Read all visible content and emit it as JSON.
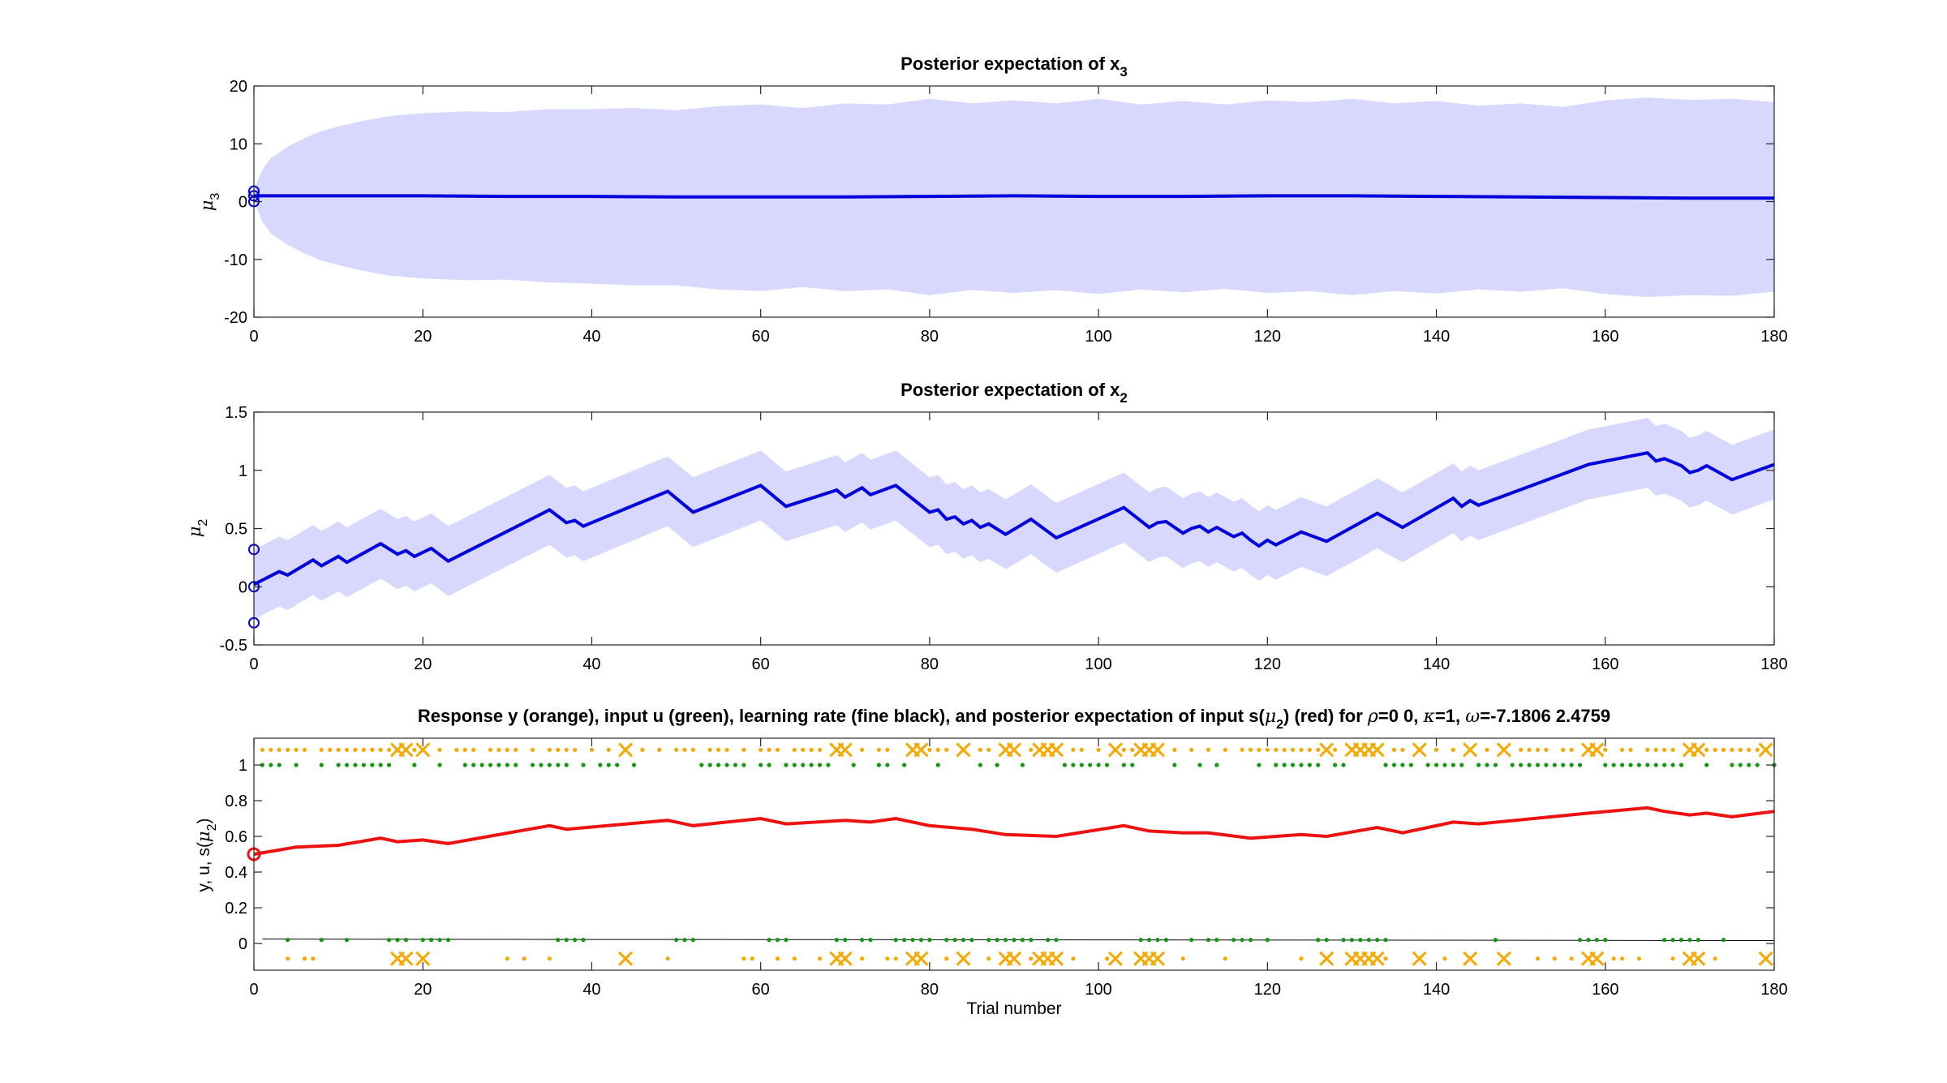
{
  "chart_data": [
    {
      "type": "line",
      "title_main": "Posterior expectation of x",
      "title_sub": "3",
      "ylabel_sym": "μ",
      "ylabel_sub": "3",
      "xlim": [
        0,
        180
      ],
      "ylim": [
        -20,
        20
      ],
      "xticks": [
        0,
        20,
        40,
        60,
        80,
        100,
        120,
        140,
        160,
        180
      ],
      "yticks": [
        -20,
        -10,
        0,
        10,
        20
      ],
      "band_color": "#d8d8ff",
      "line_color": "#0000dd",
      "mean": {
        "x": [
          0,
          10,
          20,
          30,
          40,
          50,
          60,
          70,
          80,
          90,
          100,
          110,
          120,
          130,
          140,
          150,
          160,
          170,
          180
        ],
        "y": [
          1.0,
          1.0,
          1.0,
          0.9,
          0.9,
          0.8,
          0.8,
          0.8,
          0.9,
          1.0,
          0.9,
          0.9,
          1.0,
          1.0,
          0.9,
          0.8,
          0.7,
          0.6,
          0.6
        ]
      },
      "band_upper": {
        "x": [
          0,
          1,
          2,
          4,
          6,
          8,
          10,
          13,
          16,
          20,
          25,
          30,
          35,
          40,
          45,
          50,
          55,
          60,
          65,
          70,
          75,
          80,
          85,
          90,
          95,
          100,
          105,
          110,
          115,
          120,
          125,
          130,
          135,
          140,
          145,
          150,
          155,
          160,
          165,
          170,
          175,
          180
        ],
        "y": [
          2,
          5.5,
          7.5,
          9.5,
          11,
          12.2,
          13,
          14,
          14.8,
          15.3,
          15.6,
          15.5,
          16,
          16,
          16.2,
          15.8,
          16.5,
          16.8,
          16.2,
          17,
          16.8,
          17.8,
          17,
          17.5,
          17,
          17.8,
          16.8,
          17.4,
          16.8,
          17.5,
          17.2,
          17.8,
          17,
          17.4,
          16.6,
          17,
          16.4,
          17.5,
          18,
          17.6,
          17.8,
          17.2
        ]
      },
      "band_lower": {
        "x": [
          0,
          1,
          2,
          4,
          6,
          8,
          10,
          13,
          16,
          20,
          25,
          30,
          35,
          40,
          45,
          50,
          55,
          60,
          65,
          70,
          75,
          80,
          85,
          90,
          95,
          100,
          105,
          110,
          115,
          120,
          125,
          130,
          135,
          140,
          145,
          150,
          155,
          160,
          165,
          170,
          175,
          180
        ],
        "y": [
          0,
          -3.5,
          -5.5,
          -7.5,
          -9,
          -10.2,
          -11,
          -12,
          -12.8,
          -13.3,
          -13.6,
          -13.5,
          -14,
          -14.2,
          -14.5,
          -14.5,
          -15.2,
          -15.5,
          -14.8,
          -15.5,
          -15.2,
          -16.2,
          -15.3,
          -15.8,
          -15.3,
          -16,
          -15.2,
          -15.7,
          -15.1,
          -15.8,
          -15.5,
          -16.2,
          -15.5,
          -15.9,
          -15.2,
          -15.6,
          -15,
          -16,
          -16.5,
          -16.2,
          -16.3,
          -15.6
        ]
      },
      "init_markers": [
        1.8,
        0.0,
        1.0
      ]
    },
    {
      "type": "line",
      "title_main": "Posterior expectation of x",
      "title_sub": "2",
      "ylabel_sym": "μ",
      "ylabel_sub": "2",
      "xlim": [
        0,
        180
      ],
      "ylim": [
        -0.5,
        1.5
      ],
      "xticks": [
        0,
        20,
        40,
        60,
        80,
        100,
        120,
        140,
        160,
        180
      ],
      "yticks": [
        -0.5,
        0,
        0.5,
        1,
        1.5
      ],
      "ytick_labels": [
        "-0.5",
        "0",
        "0.5",
        "1",
        "1.5"
      ],
      "band_color": "#d8d8ff",
      "line_color": "#0000dd",
      "band_halfwidth": 0.3,
      "mean": {
        "x": [
          0,
          3,
          4,
          7,
          8,
          10,
          11,
          15,
          17,
          18,
          19,
          21,
          23,
          35,
          37,
          38,
          39,
          49,
          52,
          60,
          63,
          69,
          70,
          72,
          73,
          76,
          80,
          81,
          82,
          83,
          84,
          85,
          86,
          87,
          89,
          92,
          95,
          103,
          106,
          107,
          108,
          110,
          111,
          112,
          113,
          114,
          116,
          117,
          118,
          119,
          120,
          121,
          124,
          127,
          133,
          136,
          142,
          143,
          144,
          145,
          158,
          165,
          166,
          167,
          169,
          170,
          171,
          172,
          175,
          180
        ],
        "y": [
          0.02,
          0.13,
          0.1,
          0.23,
          0.18,
          0.26,
          0.21,
          0.37,
          0.28,
          0.31,
          0.26,
          0.33,
          0.22,
          0.66,
          0.55,
          0.57,
          0.52,
          0.82,
          0.64,
          0.87,
          0.69,
          0.83,
          0.77,
          0.85,
          0.79,
          0.87,
          0.64,
          0.66,
          0.58,
          0.6,
          0.54,
          0.57,
          0.51,
          0.54,
          0.45,
          0.58,
          0.42,
          0.68,
          0.51,
          0.55,
          0.56,
          0.46,
          0.5,
          0.52,
          0.47,
          0.51,
          0.43,
          0.46,
          0.4,
          0.35,
          0.4,
          0.36,
          0.47,
          0.39,
          0.63,
          0.51,
          0.76,
          0.69,
          0.74,
          0.7,
          1.05,
          1.15,
          1.08,
          1.1,
          1.04,
          0.98,
          1.0,
          1.04,
          0.92,
          1.05
        ]
      },
      "init_markers": [
        0.32,
        0.0,
        -0.31
      ]
    },
    {
      "type": "line",
      "title": "Response y (orange), input u (green), learning rate (fine black), and posterior expectation of input s(",
      "title_sym": "μ",
      "title_sub": "2",
      "title_mid": ") (red) for ",
      "title_rho": "ρ",
      "title_rho_val": "=0  0, ",
      "title_kappa": "κ",
      "title_kappa_val": "=1, ",
      "title_omega": "ω",
      "title_omega_val": "=-7.1806      2.4759",
      "ylabel_prefix": "y, u, s(",
      "ylabel_sym": "μ",
      "ylabel_sub": "2",
      "ylabel_suffix": ")",
      "xlabel": "Trial number",
      "xlim": [
        0,
        180
      ],
      "ylim": [
        -0.15,
        1.15
      ],
      "xticks": [
        0,
        20,
        40,
        60,
        80,
        100,
        120,
        140,
        160,
        180
      ],
      "yticks": [
        0,
        0.2,
        0.4,
        0.6,
        0.8,
        1
      ],
      "ytick_labels": [
        "0",
        "0.2",
        "0.4",
        "0.6",
        "0.8",
        "1"
      ],
      "red_color": "#ee1111",
      "orange_color": "#f5a800",
      "green_color": "#119911",
      "red_line": {
        "x": [
          0,
          5,
          10,
          15,
          17,
          20,
          23,
          35,
          37,
          49,
          52,
          60,
          63,
          70,
          73,
          76,
          80,
          85,
          89,
          95,
          103,
          106,
          110,
          113,
          118,
          124,
          127,
          133,
          136,
          142,
          145,
          158,
          165,
          167,
          170,
          172,
          175,
          180
        ],
        "y": [
          0.5,
          0.54,
          0.55,
          0.59,
          0.57,
          0.58,
          0.56,
          0.66,
          0.64,
          0.69,
          0.66,
          0.7,
          0.67,
          0.69,
          0.68,
          0.7,
          0.66,
          0.64,
          0.61,
          0.6,
          0.66,
          0.63,
          0.62,
          0.62,
          0.59,
          0.61,
          0.6,
          0.65,
          0.62,
          0.68,
          0.67,
          0.73,
          0.76,
          0.74,
          0.72,
          0.73,
          0.71,
          0.74
        ]
      },
      "lr_line": {
        "x": [
          1,
          20,
          60,
          100,
          140,
          180
        ],
        "y": [
          0.025,
          0.023,
          0.022,
          0.02,
          0.018,
          0.016
        ]
      },
      "orange_x_top": [
        17,
        18,
        20,
        44,
        69,
        70,
        78,
        79,
        84,
        89,
        90,
        93,
        94,
        95,
        102,
        105,
        106,
        107,
        127,
        130,
        131,
        132,
        133,
        138,
        144,
        148,
        158,
        159,
        170,
        171,
        179
      ],
      "orange_x_bottom": [
        17,
        18,
        20,
        44,
        69,
        70,
        78,
        79,
        84,
        89,
        90,
        93,
        94,
        95,
        102,
        105,
        106,
        107,
        127,
        130,
        131,
        132,
        133,
        138,
        144,
        148,
        158,
        159,
        170,
        171,
        179
      ],
      "orange_dots_top": [
        1,
        2,
        3,
        4,
        5,
        6,
        8,
        9,
        10,
        11,
        12,
        13,
        14,
        15,
        16,
        19,
        22,
        24,
        25,
        26,
        28,
        29,
        30,
        31,
        33,
        35,
        36,
        37,
        38,
        40,
        42,
        46,
        48,
        50,
        51,
        52,
        54,
        55,
        56,
        58,
        60,
        61,
        62,
        64,
        65,
        66,
        67,
        72,
        74,
        75,
        80,
        81,
        82,
        86,
        87,
        92,
        97,
        98,
        100,
        103,
        104,
        109,
        111,
        113,
        115,
        117,
        118,
        119,
        120,
        121,
        122,
        123,
        124,
        125,
        126,
        128,
        135,
        136,
        140,
        142,
        146,
        150,
        151,
        152,
        153,
        155,
        156,
        160,
        162,
        163,
        165,
        166,
        167,
        168,
        172,
        173,
        174,
        175,
        176,
        177,
        178
      ],
      "orange_dots_bottom": [
        4,
        6,
        7,
        30,
        32,
        35,
        49,
        58,
        59,
        62,
        64,
        67,
        72,
        75,
        76,
        82,
        87,
        92,
        97,
        101,
        110,
        115,
        124,
        134,
        141,
        152,
        154,
        156,
        161,
        162,
        164,
        168,
        173
      ],
      "green_dots_top": [
        1,
        2,
        3,
        5,
        8,
        10,
        11,
        12,
        13,
        14,
        15,
        16,
        19,
        22,
        25,
        26,
        27,
        28,
        29,
        30,
        31,
        33,
        34,
        35,
        36,
        37,
        39,
        41,
        42,
        43,
        45,
        53,
        54,
        55,
        56,
        57,
        58,
        60,
        61,
        63,
        64,
        65,
        66,
        67,
        68,
        71,
        74,
        75,
        77,
        81,
        86,
        88,
        91,
        96,
        97,
        98,
        99,
        100,
        101,
        103,
        104,
        109,
        112,
        114,
        119,
        121,
        122,
        123,
        124,
        125,
        126,
        128,
        129,
        134,
        135,
        136,
        137,
        139,
        140,
        141,
        142,
        143,
        145,
        146,
        147,
        149,
        150,
        151,
        152,
        153,
        154,
        155,
        156,
        157,
        160,
        161,
        162,
        163,
        164,
        165,
        166,
        167,
        168,
        169,
        172,
        175,
        176,
        177,
        178,
        180
      ],
      "green_dots_bottom": [
        4,
        8,
        11,
        16,
        17,
        18,
        20,
        21,
        22,
        23,
        36,
        37,
        38,
        39,
        50,
        51,
        52,
        61,
        62,
        63,
        69,
        70,
        72,
        73,
        76,
        77,
        78,
        79,
        80,
        82,
        83,
        84,
        85,
        87,
        88,
        89,
        90,
        91,
        92,
        94,
        95,
        105,
        106,
        107,
        108,
        111,
        113,
        114,
        116,
        117,
        118,
        120,
        126,
        127,
        129,
        130,
        131,
        132,
        133,
        134,
        147,
        157,
        158,
        159,
        160,
        167,
        168,
        169,
        170,
        171,
        174
      ],
      "init_marker": 0.5
    }
  ]
}
